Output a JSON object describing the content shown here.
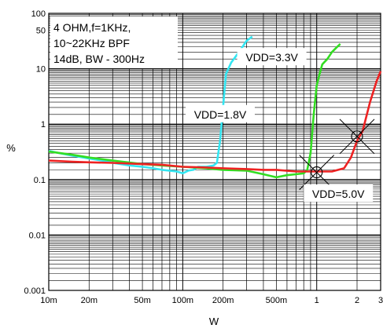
{
  "chart_data": {
    "type": "line",
    "xlabel": "W",
    "ylabel": "%",
    "x_scale": "log",
    "y_scale": "log",
    "xlim": [
      0.01,
      3
    ],
    "ylim": [
      0.001,
      100
    ],
    "grid": true,
    "x_ticks": [
      {
        "v": 0.01,
        "label": "10m"
      },
      {
        "v": 0.02,
        "label": "20m"
      },
      {
        "v": 0.05,
        "label": "50m"
      },
      {
        "v": 0.1,
        "label": "100m"
      },
      {
        "v": 0.2,
        "label": "200m"
      },
      {
        "v": 0.5,
        "label": "500m"
      },
      {
        "v": 1,
        "label": "1"
      },
      {
        "v": 2,
        "label": "2"
      },
      {
        "v": 3,
        "label": "3"
      }
    ],
    "y_ticks": [
      {
        "v": 0.001,
        "label": "0.001"
      },
      {
        "v": 0.01,
        "label": "0.01"
      },
      {
        "v": 0.1,
        "label": "0.1"
      },
      {
        "v": 1,
        "label": "1"
      },
      {
        "v": 10,
        "label": "10"
      },
      {
        "v": 50,
        "label": "50"
      },
      {
        "v": 100,
        "label": "100"
      }
    ],
    "conditions_lines": [
      "4 OHM,f=1KHz,",
      "10~22KHz BPF",
      "14dB, BW - 300Hz"
    ],
    "series": [
      {
        "name": "VDD=1.8V",
        "color": "#33e6f2",
        "x": [
          0.01,
          0.012,
          0.015,
          0.02,
          0.025,
          0.03,
          0.04,
          0.05,
          0.06,
          0.07,
          0.08,
          0.09,
          0.1,
          0.11,
          0.12,
          0.13,
          0.15,
          0.17,
          0.18,
          0.19,
          0.2,
          0.21,
          0.23,
          0.25,
          0.28,
          0.3,
          0.33
        ],
        "y": [
          0.33,
          0.3,
          0.27,
          0.24,
          0.22,
          0.2,
          0.18,
          0.17,
          0.16,
          0.15,
          0.145,
          0.14,
          0.13,
          0.145,
          0.15,
          0.17,
          0.17,
          0.18,
          0.2,
          0.5,
          2,
          8,
          13,
          17,
          25,
          32,
          38
        ]
      },
      {
        "name": "VDD=3.3V",
        "color": "#33dd22",
        "x": [
          0.01,
          0.015,
          0.02,
          0.03,
          0.05,
          0.07,
          0.1,
          0.15,
          0.2,
          0.3,
          0.4,
          0.5,
          0.6,
          0.7,
          0.8,
          0.85,
          0.9,
          0.95,
          1.0,
          1.05,
          1.1,
          1.2,
          1.3,
          1.4,
          1.5
        ],
        "y": [
          0.32,
          0.28,
          0.25,
          0.22,
          0.19,
          0.18,
          0.17,
          0.16,
          0.15,
          0.145,
          0.125,
          0.11,
          0.12,
          0.125,
          0.13,
          0.15,
          0.3,
          1.5,
          5,
          8,
          12,
          15,
          20,
          24,
          28
        ]
      },
      {
        "name": "VDD=5.0V",
        "color": "#ee2222",
        "x": [
          0.01,
          0.015,
          0.02,
          0.03,
          0.05,
          0.07,
          0.1,
          0.15,
          0.2,
          0.3,
          0.4,
          0.5,
          0.7,
          1.0,
          1.3,
          1.6,
          1.8,
          2.0,
          2.2,
          2.5,
          2.8,
          3.0
        ],
        "y": [
          0.22,
          0.21,
          0.205,
          0.2,
          0.19,
          0.185,
          0.17,
          0.165,
          0.16,
          0.155,
          0.15,
          0.15,
          0.14,
          0.14,
          0.14,
          0.16,
          0.25,
          0.5,
          0.75,
          2.5,
          6,
          9
        ]
      }
    ],
    "annotations": [
      {
        "text": "VDD=1.8V",
        "x": 0.105,
        "y": 1.5
      },
      {
        "text": "VDD=3.3V",
        "x": 0.255,
        "y": 16
      },
      {
        "text": "VDD=5.0V",
        "x": 0.8,
        "y": 0.055
      }
    ],
    "markers": [
      {
        "x": 1.0,
        "y": 0.135
      },
      {
        "x": 2.0,
        "y": 0.6
      }
    ]
  }
}
